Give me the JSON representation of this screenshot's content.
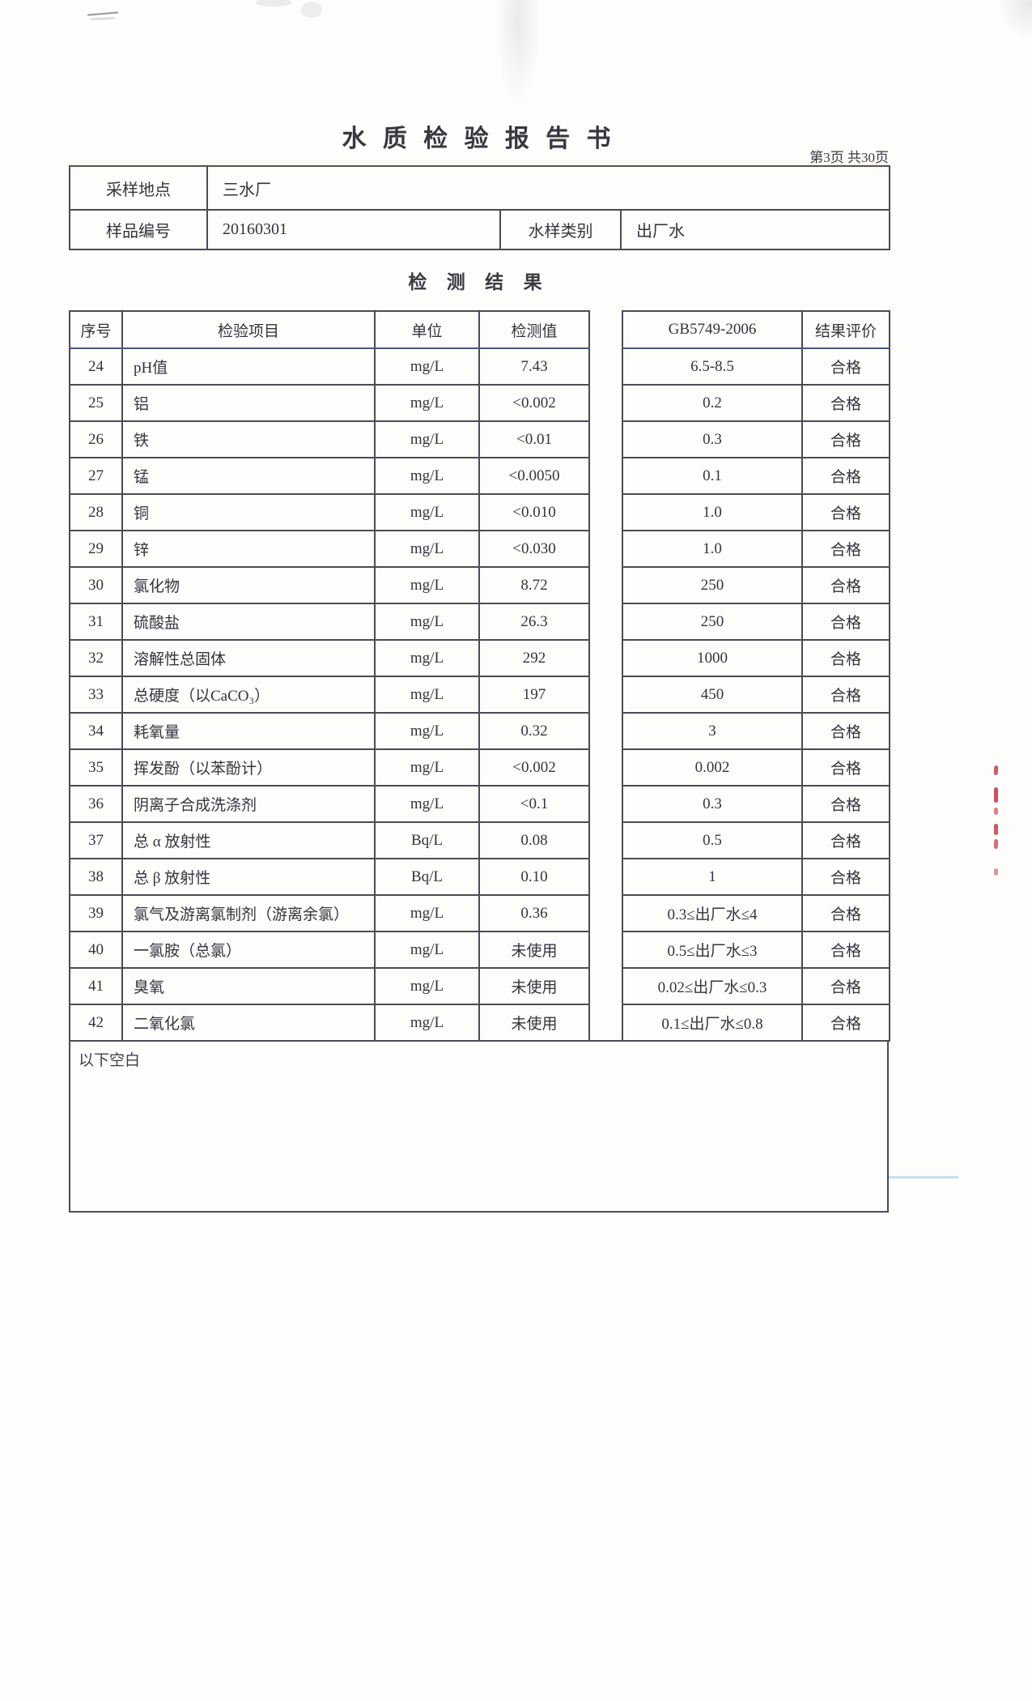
{
  "document": {
    "title": "水 质 检 验 报 告 书",
    "page_info": "第3页 共30页",
    "section_title": "检 测 结 果",
    "footer_note": "以下空白"
  },
  "sample_info": {
    "location_label": "采样地点",
    "location_value": "三水厂",
    "sample_no_label": "样品编号",
    "sample_no_value": "20160301",
    "sample_type_label": "水样类别",
    "sample_type_value": "出厂水"
  },
  "results_table": {
    "headers": {
      "seq": "序号",
      "item": "检验项目",
      "unit": "单位",
      "value": "检测值",
      "standard": "GB5749-2006",
      "result": "结果评价"
    },
    "rows": [
      {
        "seq": "24",
        "item": "pH值",
        "unit": "mg/L",
        "value": "7.43",
        "standard": "6.5-8.5",
        "result": "合格"
      },
      {
        "seq": "25",
        "item": "铝",
        "unit": "mg/L",
        "value": "<0.002",
        "standard": "0.2",
        "result": "合格"
      },
      {
        "seq": "26",
        "item": "铁",
        "unit": "mg/L",
        "value": "<0.01",
        "standard": "0.3",
        "result": "合格"
      },
      {
        "seq": "27",
        "item": "锰",
        "unit": "mg/L",
        "value": "<0.0050",
        "standard": "0.1",
        "result": "合格"
      },
      {
        "seq": "28",
        "item": "铜",
        "unit": "mg/L",
        "value": "<0.010",
        "standard": "1.0",
        "result": "合格"
      },
      {
        "seq": "29",
        "item": "锌",
        "unit": "mg/L",
        "value": "<0.030",
        "standard": "1.0",
        "result": "合格"
      },
      {
        "seq": "30",
        "item": "氯化物",
        "unit": "mg/L",
        "value": "8.72",
        "standard": "250",
        "result": "合格"
      },
      {
        "seq": "31",
        "item": "硫酸盐",
        "unit": "mg/L",
        "value": "26.3",
        "standard": "250",
        "result": "合格"
      },
      {
        "seq": "32",
        "item": "溶解性总固体",
        "unit": "mg/L",
        "value": "292",
        "standard": "1000",
        "result": "合格"
      },
      {
        "seq": "33",
        "item": "总硬度（以CaCO₃）",
        "unit": "mg/L",
        "value": "197",
        "standard": "450",
        "result": "合格"
      },
      {
        "seq": "34",
        "item": "耗氧量",
        "unit": "mg/L",
        "value": "0.32",
        "standard": "3",
        "result": "合格"
      },
      {
        "seq": "35",
        "item": "挥发酚（以苯酚计）",
        "unit": "mg/L",
        "value": "<0.002",
        "standard": "0.002",
        "result": "合格"
      },
      {
        "seq": "36",
        "item": "阴离子合成洗涤剂",
        "unit": "mg/L",
        "value": "<0.1",
        "standard": "0.3",
        "result": "合格"
      },
      {
        "seq": "37",
        "item": "总 α 放射性",
        "unit": "Bq/L",
        "value": "0.08",
        "standard": "0.5",
        "result": "合格"
      },
      {
        "seq": "38",
        "item": "总 β 放射性",
        "unit": "Bq/L",
        "value": "0.10",
        "standard": "1",
        "result": "合格"
      },
      {
        "seq": "39",
        "item": "氯气及游离氯制剂（游离余氯）",
        "unit": "mg/L",
        "value": "0.36",
        "standard": "0.3≤出厂水≤4",
        "result": "合格"
      },
      {
        "seq": "40",
        "item": "一氯胺（总氯）",
        "unit": "mg/L",
        "value": "未使用",
        "standard": "0.5≤出厂水≤3",
        "result": "合格"
      },
      {
        "seq": "41",
        "item": "臭氧",
        "unit": "mg/L",
        "value": "未使用",
        "standard": "0.02≤出厂水≤0.3",
        "result": "合格"
      },
      {
        "seq": "42",
        "item": "二氧化氯",
        "unit": "mg/L",
        "value": "未使用",
        "standard": "0.1≤出厂水≤0.8",
        "result": "合格"
      }
    ]
  }
}
